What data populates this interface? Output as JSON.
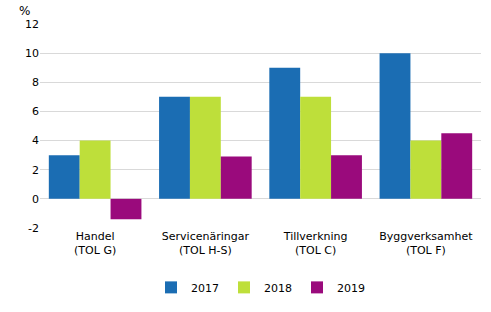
{
  "chart_data": {
    "type": "bar",
    "ylabel": "%",
    "categories": [
      "Handel\n(TOL G)",
      "Servicenäringar\n(TOL H-S)",
      "Tillverkning\n(TOL C)",
      "Byggverksamhet\n(TOL F)"
    ],
    "series": [
      {
        "name": "2017",
        "color": "#1b6db3",
        "values": [
          3,
          7,
          9,
          10
        ]
      },
      {
        "name": "2018",
        "color": "#bedf3a",
        "values": [
          4,
          7,
          7,
          4
        ]
      },
      {
        "name": "2019",
        "color": "#9a0a7c",
        "values": [
          -1.4,
          2.9,
          3,
          4.5
        ]
      }
    ],
    "ylim": [
      -2,
      12
    ],
    "yticks": [
      -2,
      0,
      2,
      4,
      6,
      8,
      10,
      12
    ],
    "grid": true,
    "legend": "bottom"
  }
}
